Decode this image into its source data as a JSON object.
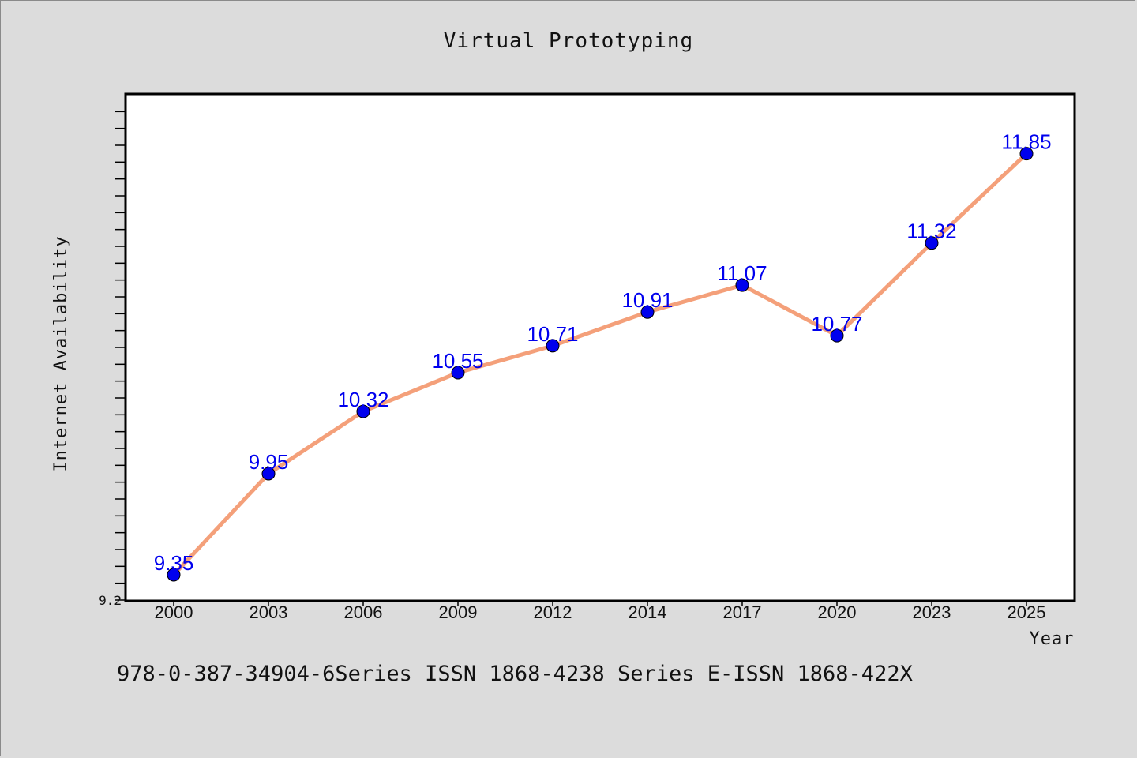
{
  "chart_data": {
    "type": "line",
    "title": "Virtual Prototyping",
    "xlabel": "Year",
    "ylabel": "Internet Availability",
    "categories": [
      "2000",
      "2003",
      "2006",
      "2009",
      "2012",
      "2014",
      "2017",
      "2020",
      "2023",
      "2025"
    ],
    "series": [
      {
        "values": [
          9.35,
          9.95,
          10.32,
          10.55,
          10.71,
          10.91,
          11.07,
          10.77,
          11.32,
          11.85
        ],
        "labels": [
          "9.35",
          "9.95",
          "10.32",
          "10.55",
          "10.71",
          "10.91",
          "11.07",
          "10.77",
          "11.32",
          "11.85"
        ]
      }
    ],
    "ylim": [
      9.2,
      12.2
    ],
    "yticks": [
      "9.2"
    ],
    "grid": false,
    "colors": {
      "line": "#f4a07a",
      "marker": "#0000ee",
      "label": "#0000ee"
    }
  },
  "footer": {
    "text": "978-0-387-34904-6Series ISSN 1868-4238 Series E-ISSN 1868-422X"
  }
}
